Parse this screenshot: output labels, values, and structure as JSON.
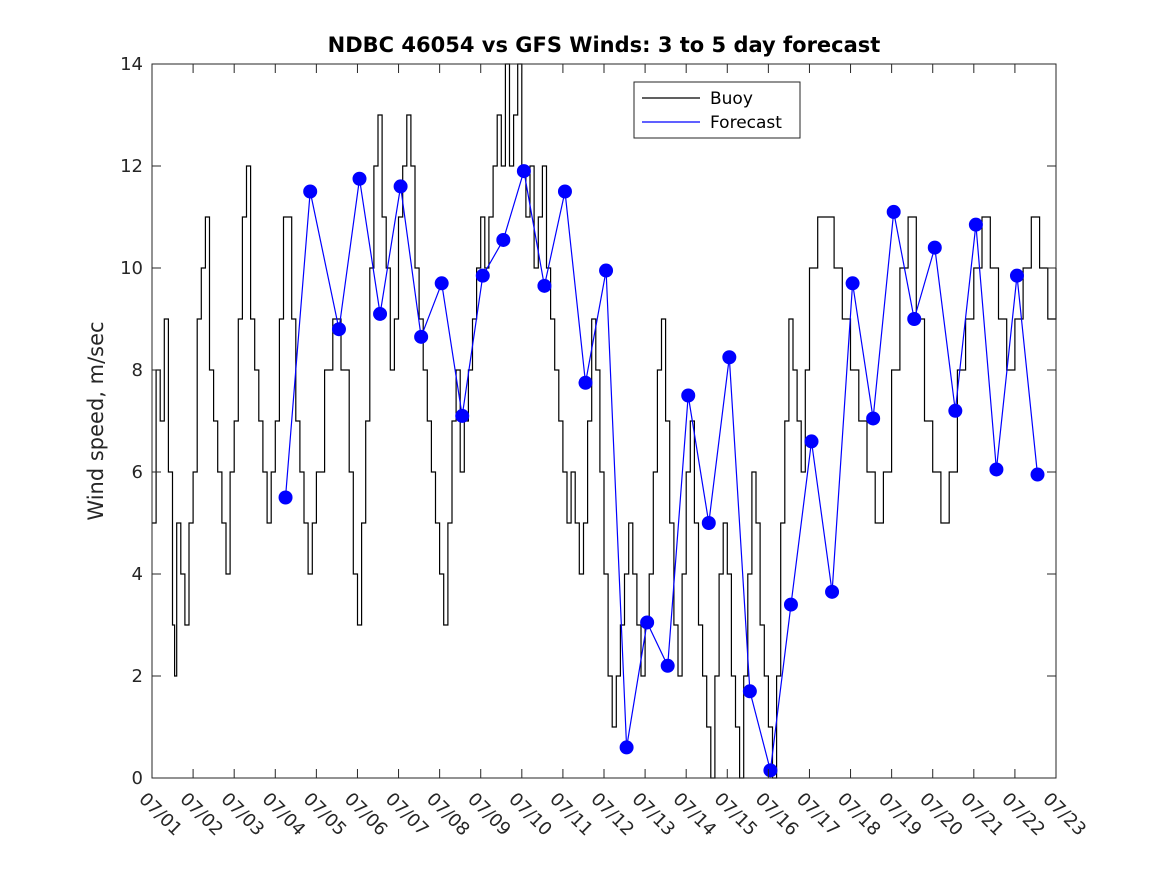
{
  "chart_data": {
    "type": "line",
    "title": "NDBC 46054 vs GFS Winds: 3 to 5 day forecast",
    "xlabel": "",
    "ylabel": "Wind speed, m/sec",
    "x_tick_labels": [
      "07/01",
      "07/02",
      "07/03",
      "07/04",
      "07/05",
      "07/06",
      "07/07",
      "07/08",
      "07/09",
      "07/10",
      "07/11",
      "07/12",
      "07/13",
      "07/14",
      "07/15",
      "07/16",
      "07/17",
      "07/18",
      "07/19",
      "07/20",
      "07/21",
      "07/22",
      "07/23"
    ],
    "xlim_days": [
      0,
      22
    ],
    "ylim": [
      0,
      14
    ],
    "y_ticks": [
      0,
      2,
      4,
      6,
      8,
      10,
      12,
      14
    ],
    "grid": false,
    "legend": {
      "position": "top-right",
      "entries": [
        {
          "label": "Buoy",
          "color": "#000000"
        },
        {
          "label": "Forecast",
          "color": "#0000ff"
        }
      ]
    },
    "series": [
      {
        "name": "Buoy",
        "color": "#000000",
        "style": "stepped-line",
        "points": [
          [
            0.0,
            5
          ],
          [
            0.1,
            8
          ],
          [
            0.2,
            7
          ],
          [
            0.3,
            9
          ],
          [
            0.4,
            6
          ],
          [
            0.5,
            3
          ],
          [
            0.55,
            2
          ],
          [
            0.6,
            5
          ],
          [
            0.7,
            4
          ],
          [
            0.8,
            3
          ],
          [
            0.9,
            5
          ],
          [
            1.0,
            6
          ],
          [
            1.1,
            9
          ],
          [
            1.2,
            10
          ],
          [
            1.3,
            11
          ],
          [
            1.4,
            8
          ],
          [
            1.5,
            7
          ],
          [
            1.6,
            6
          ],
          [
            1.7,
            5
          ],
          [
            1.8,
            4
          ],
          [
            1.9,
            6
          ],
          [
            2.0,
            7
          ],
          [
            2.1,
            9
          ],
          [
            2.2,
            11
          ],
          [
            2.3,
            12
          ],
          [
            2.4,
            9
          ],
          [
            2.5,
            8
          ],
          [
            2.6,
            7
          ],
          [
            2.7,
            6
          ],
          [
            2.8,
            5
          ],
          [
            2.9,
            6
          ],
          [
            3.0,
            7
          ],
          [
            3.1,
            9
          ],
          [
            3.2,
            11
          ],
          [
            3.3,
            11
          ],
          [
            3.4,
            9
          ],
          [
            3.5,
            7
          ],
          [
            3.6,
            6
          ],
          [
            3.7,
            5
          ],
          [
            3.8,
            4
          ],
          [
            3.9,
            5
          ],
          [
            4.0,
            6
          ],
          [
            4.2,
            8
          ],
          [
            4.4,
            9
          ],
          [
            4.6,
            8
          ],
          [
            4.8,
            6
          ],
          [
            4.9,
            4
          ],
          [
            5.0,
            3
          ],
          [
            5.1,
            5
          ],
          [
            5.2,
            7
          ],
          [
            5.3,
            10
          ],
          [
            5.4,
            12
          ],
          [
            5.5,
            13
          ],
          [
            5.6,
            11
          ],
          [
            5.7,
            10
          ],
          [
            5.8,
            8
          ],
          [
            5.9,
            9
          ],
          [
            6.0,
            11
          ],
          [
            6.1,
            12
          ],
          [
            6.2,
            13
          ],
          [
            6.3,
            12
          ],
          [
            6.4,
            10
          ],
          [
            6.5,
            9
          ],
          [
            6.6,
            8
          ],
          [
            6.7,
            7
          ],
          [
            6.8,
            6
          ],
          [
            6.9,
            5
          ],
          [
            7.0,
            4
          ],
          [
            7.1,
            3
          ],
          [
            7.2,
            5
          ],
          [
            7.3,
            7
          ],
          [
            7.4,
            8
          ],
          [
            7.5,
            6
          ],
          [
            7.6,
            7
          ],
          [
            7.7,
            8
          ],
          [
            7.8,
            9
          ],
          [
            7.9,
            10
          ],
          [
            8.0,
            11
          ],
          [
            8.1,
            10
          ],
          [
            8.2,
            11
          ],
          [
            8.3,
            12
          ],
          [
            8.4,
            13
          ],
          [
            8.5,
            12
          ],
          [
            8.6,
            14
          ],
          [
            8.7,
            12
          ],
          [
            8.8,
            13
          ],
          [
            8.9,
            14
          ],
          [
            9.0,
            12
          ],
          [
            9.1,
            11
          ],
          [
            9.2,
            12
          ],
          [
            9.3,
            10
          ],
          [
            9.4,
            11
          ],
          [
            9.5,
            12
          ],
          [
            9.6,
            10
          ],
          [
            9.7,
            9
          ],
          [
            9.8,
            8
          ],
          [
            9.9,
            7
          ],
          [
            10.0,
            6
          ],
          [
            10.1,
            5
          ],
          [
            10.2,
            6
          ],
          [
            10.3,
            5
          ],
          [
            10.4,
            4
          ],
          [
            10.5,
            5
          ],
          [
            10.6,
            7
          ],
          [
            10.7,
            9
          ],
          [
            10.8,
            8
          ],
          [
            10.9,
            6
          ],
          [
            11.0,
            4
          ],
          [
            11.1,
            2
          ],
          [
            11.2,
            1
          ],
          [
            11.3,
            2
          ],
          [
            11.4,
            3
          ],
          [
            11.5,
            4
          ],
          [
            11.6,
            5
          ],
          [
            11.7,
            4
          ],
          [
            11.8,
            3
          ],
          [
            11.9,
            2
          ],
          [
            12.0,
            3
          ],
          [
            12.1,
            4
          ],
          [
            12.2,
            6
          ],
          [
            12.3,
            8
          ],
          [
            12.4,
            9
          ],
          [
            12.5,
            7
          ],
          [
            12.6,
            5
          ],
          [
            12.7,
            3
          ],
          [
            12.8,
            2
          ],
          [
            12.9,
            4
          ],
          [
            13.0,
            6
          ],
          [
            13.1,
            7
          ],
          [
            13.2,
            5
          ],
          [
            13.3,
            3
          ],
          [
            13.4,
            2
          ],
          [
            13.5,
            1
          ],
          [
            13.6,
            0
          ],
          [
            13.7,
            2
          ],
          [
            13.8,
            4
          ],
          [
            13.9,
            5
          ],
          [
            14.0,
            4
          ],
          [
            14.1,
            2
          ],
          [
            14.2,
            1
          ],
          [
            14.3,
            0
          ],
          [
            14.4,
            2
          ],
          [
            14.5,
            4
          ],
          [
            14.6,
            6
          ],
          [
            14.7,
            5
          ],
          [
            14.8,
            3
          ],
          [
            14.9,
            2
          ],
          [
            15.0,
            1
          ],
          [
            15.1,
            0
          ],
          [
            15.2,
            2
          ],
          [
            15.3,
            5
          ],
          [
            15.4,
            7
          ],
          [
            15.5,
            9
          ],
          [
            15.6,
            8
          ],
          [
            15.7,
            7
          ],
          [
            15.8,
            6
          ],
          [
            15.9,
            8
          ],
          [
            16.0,
            10
          ],
          [
            16.2,
            11
          ],
          [
            16.4,
            11
          ],
          [
            16.6,
            10
          ],
          [
            16.8,
            9
          ],
          [
            17.0,
            8
          ],
          [
            17.2,
            7
          ],
          [
            17.4,
            6
          ],
          [
            17.6,
            5
          ],
          [
            17.8,
            6
          ],
          [
            18.0,
            8
          ],
          [
            18.2,
            10
          ],
          [
            18.4,
            11
          ],
          [
            18.6,
            9
          ],
          [
            18.8,
            7
          ],
          [
            19.0,
            6
          ],
          [
            19.2,
            5
          ],
          [
            19.4,
            6
          ],
          [
            19.6,
            8
          ],
          [
            19.8,
            9
          ],
          [
            20.0,
            10
          ],
          [
            20.2,
            11
          ],
          [
            20.4,
            10
          ],
          [
            20.6,
            9
          ],
          [
            20.8,
            8
          ],
          [
            21.0,
            9
          ],
          [
            21.2,
            10
          ],
          [
            21.4,
            11
          ],
          [
            21.6,
            10
          ],
          [
            21.8,
            9
          ],
          [
            22.0,
            10
          ]
        ]
      },
      {
        "name": "Forecast",
        "color": "#0000ff",
        "style": "line-with-markers",
        "markers": [
          [
            3.25,
            5.5
          ],
          [
            3.85,
            11.5
          ],
          [
            4.55,
            8.8
          ],
          [
            5.05,
            11.75
          ],
          [
            5.55,
            9.1
          ],
          [
            6.05,
            11.6
          ],
          [
            6.55,
            8.65
          ],
          [
            7.05,
            9.7
          ],
          [
            7.55,
            7.1
          ],
          [
            8.05,
            9.85
          ],
          [
            8.55,
            10.55
          ],
          [
            9.05,
            11.9
          ],
          [
            9.55,
            9.65
          ],
          [
            10.05,
            11.5
          ],
          [
            10.55,
            7.75
          ],
          [
            11.05,
            9.95
          ],
          [
            11.55,
            0.6
          ],
          [
            12.05,
            3.05
          ],
          [
            12.55,
            2.2
          ],
          [
            13.05,
            7.5
          ],
          [
            13.55,
            5.0
          ],
          [
            14.05,
            8.25
          ],
          [
            14.55,
            1.7
          ],
          [
            15.05,
            0.15
          ],
          [
            15.55,
            3.4
          ],
          [
            16.05,
            6.6
          ],
          [
            16.55,
            3.65
          ],
          [
            17.05,
            9.7
          ],
          [
            17.55,
            7.05
          ],
          [
            18.05,
            11.1
          ],
          [
            18.55,
            9.0
          ],
          [
            19.05,
            10.4
          ],
          [
            19.55,
            7.2
          ],
          [
            20.05,
            10.85
          ],
          [
            20.55,
            6.05
          ],
          [
            21.05,
            9.85
          ],
          [
            21.55,
            5.95
          ]
        ]
      }
    ]
  }
}
